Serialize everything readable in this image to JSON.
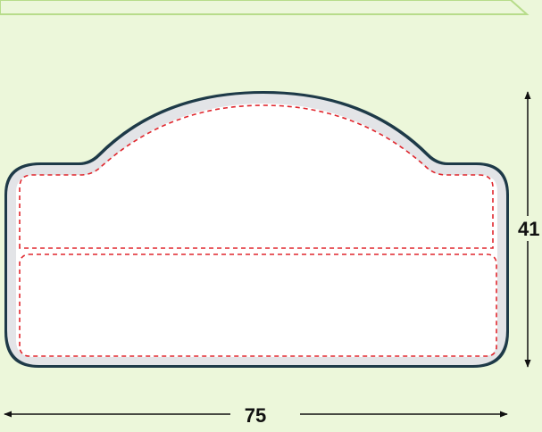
{
  "dimensions": {
    "width_label": "75",
    "height_label": "41"
  },
  "colors": {
    "background": "#ecf7da",
    "header_strip": "#ecf7da",
    "header_border": "#b7dc8a",
    "plate_outline": "#1e3a48",
    "plate_rim": "#e3e4e7",
    "plate_face": "#ffffff",
    "safety_line": "#e0262d",
    "dimension_line": "#111111"
  }
}
